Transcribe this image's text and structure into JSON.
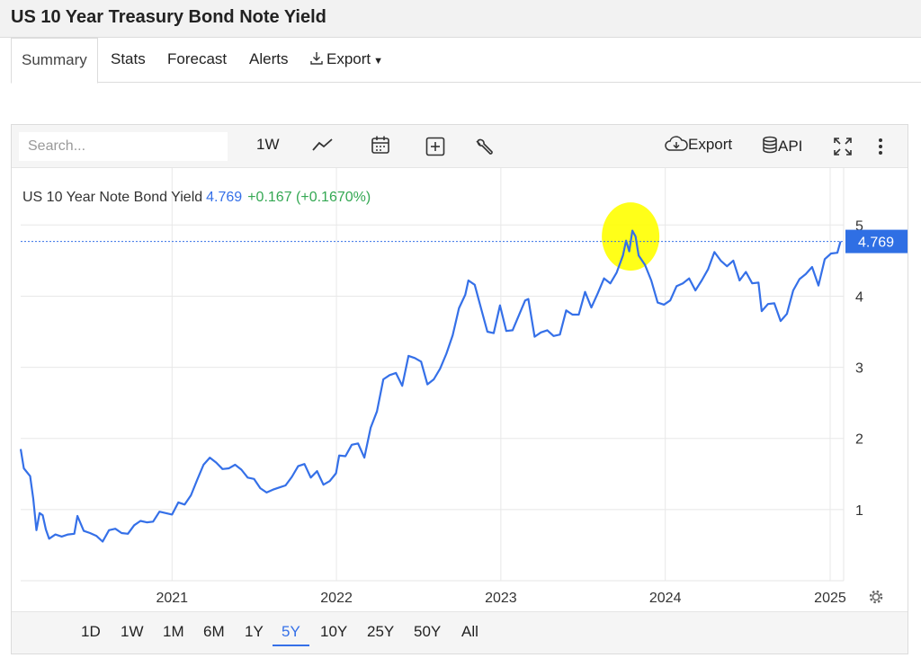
{
  "page": {
    "title": "US 10 Year Treasury Bond Note Yield"
  },
  "tabs": [
    {
      "label": "Summary",
      "active": true
    },
    {
      "label": "Stats",
      "active": false
    },
    {
      "label": "Forecast",
      "active": false
    },
    {
      "label": "Alerts",
      "active": false
    },
    {
      "label": "Export",
      "active": false,
      "icon": "download-icon",
      "has_dropdown": true
    }
  ],
  "toolbar": {
    "search_placeholder": "Search...",
    "interval_label": "1W",
    "chart_type_icon": "line-chart-icon",
    "calendar_icon": "calendar-icon",
    "compare_icon": "plus-square-icon",
    "indicators_icon": "wrench-icon",
    "export_label": "Export",
    "export_icon": "cloud-download-icon",
    "api_label": "API",
    "api_icon": "database-icon",
    "fullscreen_icon": "fullscreen-icon",
    "more_icon": "more-vertical-icon"
  },
  "legend": {
    "name": "US 10 Year Note Bond Yield",
    "price": "4.769",
    "change": "+0.167 (+0.1670%)"
  },
  "range_buttons": [
    {
      "label": "1D",
      "active": false
    },
    {
      "label": "1W",
      "active": false
    },
    {
      "label": "1M",
      "active": false
    },
    {
      "label": "6M",
      "active": false
    },
    {
      "label": "1Y",
      "active": false
    },
    {
      "label": "5Y",
      "active": true
    },
    {
      "label": "10Y",
      "active": false
    },
    {
      "label": "25Y",
      "active": false
    },
    {
      "label": "50Y",
      "active": false
    },
    {
      "label": "All",
      "active": false
    }
  ],
  "settings_icon": "gear-icon",
  "colors": {
    "series": "#3570e8",
    "positive": "#34a853",
    "highlight": "#ffff00",
    "last_price_bg": "#2f6fe4"
  },
  "chart_data": {
    "type": "line",
    "title": "US 10 Year Note Bond Yield",
    "xlabel": "",
    "ylabel": "",
    "x_ticks": [
      "2021",
      "2022",
      "2023",
      "2024",
      "2025"
    ],
    "y_ticks": [
      1,
      2,
      3,
      4,
      5
    ],
    "ylim": [
      0,
      5.8
    ],
    "xlim": [
      "2020-01-31",
      "2025-01-31"
    ],
    "last_value": 4.769,
    "last_value_label": "4.769",
    "highlight": {
      "x": "2023-10-20",
      "y": 4.99,
      "shape": "yellow ellipse"
    },
    "grid": true,
    "series": [
      {
        "points": [
          [
            "2020-01-31",
            1.85
          ],
          [
            "2020-02-07",
            1.58
          ],
          [
            "2020-02-21",
            1.47
          ],
          [
            "2020-02-28",
            1.15
          ],
          [
            "2020-03-06",
            0.71
          ],
          [
            "2020-03-13",
            0.95
          ],
          [
            "2020-03-20",
            0.92
          ],
          [
            "2020-03-27",
            0.72
          ],
          [
            "2020-04-03",
            0.59
          ],
          [
            "2020-04-17",
            0.65
          ],
          [
            "2020-05-01",
            0.62
          ],
          [
            "2020-05-15",
            0.65
          ],
          [
            "2020-05-29",
            0.66
          ],
          [
            "2020-06-05",
            0.91
          ],
          [
            "2020-06-19",
            0.7
          ],
          [
            "2020-07-03",
            0.67
          ],
          [
            "2020-07-17",
            0.63
          ],
          [
            "2020-07-31",
            0.55
          ],
          [
            "2020-08-14",
            0.71
          ],
          [
            "2020-08-28",
            0.73
          ],
          [
            "2020-09-11",
            0.67
          ],
          [
            "2020-09-25",
            0.66
          ],
          [
            "2020-10-09",
            0.78
          ],
          [
            "2020-10-23",
            0.84
          ],
          [
            "2020-11-06",
            0.82
          ],
          [
            "2020-11-20",
            0.83
          ],
          [
            "2020-12-04",
            0.97
          ],
          [
            "2020-12-18",
            0.95
          ],
          [
            "2021-01-01",
            0.93
          ],
          [
            "2021-01-15",
            1.1
          ],
          [
            "2021-01-29",
            1.07
          ],
          [
            "2021-02-12",
            1.2
          ],
          [
            "2021-02-26",
            1.42
          ],
          [
            "2021-03-12",
            1.63
          ],
          [
            "2021-03-26",
            1.73
          ],
          [
            "2021-04-09",
            1.66
          ],
          [
            "2021-04-23",
            1.57
          ],
          [
            "2021-05-07",
            1.58
          ],
          [
            "2021-05-21",
            1.63
          ],
          [
            "2021-06-04",
            1.56
          ],
          [
            "2021-06-18",
            1.45
          ],
          [
            "2021-07-02",
            1.43
          ],
          [
            "2021-07-16",
            1.3
          ],
          [
            "2021-07-30",
            1.24
          ],
          [
            "2021-08-13",
            1.28
          ],
          [
            "2021-08-27",
            1.31
          ],
          [
            "2021-09-10",
            1.34
          ],
          [
            "2021-09-24",
            1.46
          ],
          [
            "2021-10-08",
            1.61
          ],
          [
            "2021-10-22",
            1.64
          ],
          [
            "2021-11-05",
            1.45
          ],
          [
            "2021-11-19",
            1.54
          ],
          [
            "2021-12-03",
            1.35
          ],
          [
            "2021-12-17",
            1.4
          ],
          [
            "2021-12-31",
            1.51
          ],
          [
            "2022-01-07",
            1.76
          ],
          [
            "2022-01-21",
            1.75
          ],
          [
            "2022-02-04",
            1.91
          ],
          [
            "2022-02-18",
            1.93
          ],
          [
            "2022-03-04",
            1.73
          ],
          [
            "2022-03-18",
            2.15
          ],
          [
            "2022-04-01",
            2.38
          ],
          [
            "2022-04-15",
            2.83
          ],
          [
            "2022-04-29",
            2.89
          ],
          [
            "2022-05-13",
            2.92
          ],
          [
            "2022-05-27",
            2.74
          ],
          [
            "2022-06-10",
            3.16
          ],
          [
            "2022-06-24",
            3.13
          ],
          [
            "2022-07-08",
            3.08
          ],
          [
            "2022-07-22",
            2.76
          ],
          [
            "2022-08-05",
            2.83
          ],
          [
            "2022-08-19",
            2.98
          ],
          [
            "2022-09-02",
            3.19
          ],
          [
            "2022-09-16",
            3.45
          ],
          [
            "2022-09-30",
            3.83
          ],
          [
            "2022-10-14",
            4.02
          ],
          [
            "2022-10-21",
            4.22
          ],
          [
            "2022-11-04",
            4.16
          ],
          [
            "2022-11-18",
            3.83
          ],
          [
            "2022-12-02",
            3.5
          ],
          [
            "2022-12-16",
            3.48
          ],
          [
            "2022-12-30",
            3.87
          ],
          [
            "2023-01-13",
            3.51
          ],
          [
            "2023-01-27",
            3.52
          ],
          [
            "2023-02-10",
            3.73
          ],
          [
            "2023-02-24",
            3.94
          ],
          [
            "2023-03-03",
            3.96
          ],
          [
            "2023-03-17",
            3.43
          ],
          [
            "2023-03-31",
            3.49
          ],
          [
            "2023-04-14",
            3.52
          ],
          [
            "2023-04-28",
            3.44
          ],
          [
            "2023-05-12",
            3.46
          ],
          [
            "2023-05-26",
            3.8
          ],
          [
            "2023-06-09",
            3.74
          ],
          [
            "2023-06-23",
            3.74
          ],
          [
            "2023-07-07",
            4.06
          ],
          [
            "2023-07-21",
            3.84
          ],
          [
            "2023-08-04",
            4.04
          ],
          [
            "2023-08-18",
            4.25
          ],
          [
            "2023-09-01",
            4.18
          ],
          [
            "2023-09-15",
            4.33
          ],
          [
            "2023-09-29",
            4.57
          ],
          [
            "2023-10-06",
            4.78
          ],
          [
            "2023-10-13",
            4.63
          ],
          [
            "2023-10-20",
            4.92
          ],
          [
            "2023-10-27",
            4.84
          ],
          [
            "2023-11-03",
            4.57
          ],
          [
            "2023-11-17",
            4.44
          ],
          [
            "2023-12-01",
            4.22
          ],
          [
            "2023-12-15",
            3.91
          ],
          [
            "2023-12-29",
            3.88
          ],
          [
            "2024-01-12",
            3.94
          ],
          [
            "2024-01-26",
            4.14
          ],
          [
            "2024-02-09",
            4.18
          ],
          [
            "2024-02-23",
            4.25
          ],
          [
            "2024-03-08",
            4.08
          ],
          [
            "2024-03-22",
            4.22
          ],
          [
            "2024-04-05",
            4.38
          ],
          [
            "2024-04-19",
            4.62
          ],
          [
            "2024-05-03",
            4.5
          ],
          [
            "2024-05-17",
            4.42
          ],
          [
            "2024-05-31",
            4.5
          ],
          [
            "2024-06-14",
            4.22
          ],
          [
            "2024-06-28",
            4.34
          ],
          [
            "2024-07-12",
            4.18
          ],
          [
            "2024-07-26",
            4.19
          ],
          [
            "2024-08-02",
            3.79
          ],
          [
            "2024-08-16",
            3.89
          ],
          [
            "2024-08-30",
            3.9
          ],
          [
            "2024-09-13",
            3.65
          ],
          [
            "2024-09-27",
            3.75
          ],
          [
            "2024-10-11",
            4.08
          ],
          [
            "2024-10-25",
            4.24
          ],
          [
            "2024-11-08",
            4.31
          ],
          [
            "2024-11-22",
            4.41
          ],
          [
            "2024-12-06",
            4.15
          ],
          [
            "2024-12-20",
            4.52
          ],
          [
            "2025-01-03",
            4.6
          ],
          [
            "2025-01-17",
            4.61
          ],
          [
            "2025-01-24",
            4.769
          ]
        ]
      }
    ]
  }
}
